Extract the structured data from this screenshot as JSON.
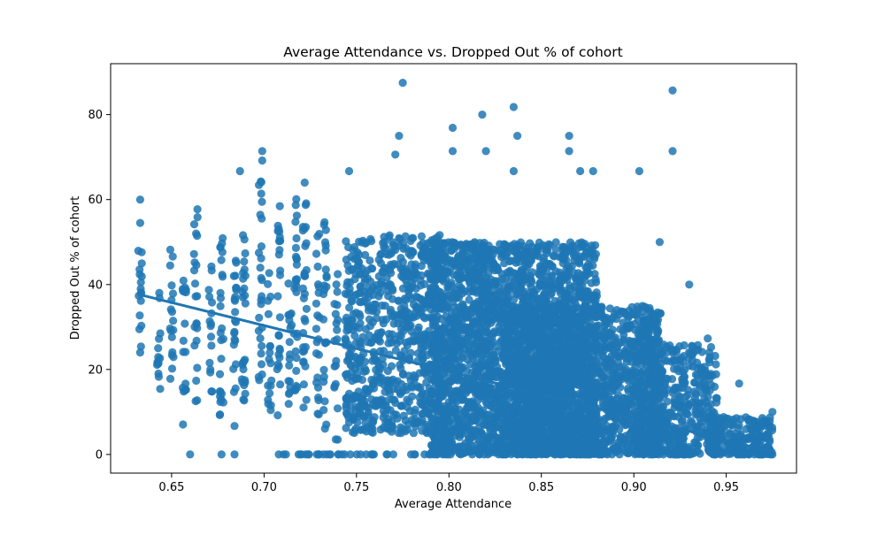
{
  "chart_data": {
    "type": "scatter",
    "title": "Average Attendance vs. Dropped Out % of cohort",
    "xlabel": "Average Attendance",
    "ylabel": "Dropped Out % of cohort",
    "xlim": [
      0.617,
      0.988
    ],
    "ylim": [
      -4.4,
      92.0
    ],
    "xticks": [
      0.65,
      0.7,
      0.75,
      0.8,
      0.85,
      0.9,
      0.95
    ],
    "xtick_labels": [
      "0.65",
      "0.70",
      "0.75",
      "0.80",
      "0.85",
      "0.90",
      "0.95"
    ],
    "yticks": [
      0,
      20,
      40,
      60,
      80
    ],
    "ytick_labels": [
      "0",
      "20",
      "40",
      "60",
      "80"
    ],
    "grid": false,
    "legend": "none",
    "color": "#1f77b4",
    "regression_line": {
      "x": [
        0.633,
        0.975
      ],
      "y": [
        37.6,
        0.6
      ]
    },
    "notable_points": [
      {
        "x": 0.633,
        "y": 60.0
      },
      {
        "x": 0.633,
        "y": 54.5
      },
      {
        "x": 0.633,
        "y": 24.0
      },
      {
        "x": 0.66,
        "y": 0.0
      },
      {
        "x": 0.677,
        "y": 0.0
      },
      {
        "x": 0.684,
        "y": 0.0
      },
      {
        "x": 0.684,
        "y": 6.7
      },
      {
        "x": 0.687,
        "y": 66.7
      },
      {
        "x": 0.699,
        "y": 71.4
      },
      {
        "x": 0.699,
        "y": 69.2
      },
      {
        "x": 0.722,
        "y": 64.0
      },
      {
        "x": 0.746,
        "y": 66.7
      },
      {
        "x": 0.775,
        "y": 87.5
      },
      {
        "x": 0.773,
        "y": 75.0
      },
      {
        "x": 0.771,
        "y": 70.6
      },
      {
        "x": 0.802,
        "y": 76.9
      },
      {
        "x": 0.802,
        "y": 71.4
      },
      {
        "x": 0.818,
        "y": 80.0
      },
      {
        "x": 0.82,
        "y": 71.4
      },
      {
        "x": 0.835,
        "y": 81.8
      },
      {
        "x": 0.837,
        "y": 75.0
      },
      {
        "x": 0.835,
        "y": 66.7
      },
      {
        "x": 0.865,
        "y": 75.0
      },
      {
        "x": 0.865,
        "y": 71.4
      },
      {
        "x": 0.871,
        "y": 66.7
      },
      {
        "x": 0.878,
        "y": 66.7
      },
      {
        "x": 0.903,
        "y": 66.7
      },
      {
        "x": 0.921,
        "y": 85.7
      },
      {
        "x": 0.921,
        "y": 71.4
      },
      {
        "x": 0.914,
        "y": 50.0
      },
      {
        "x": 0.93,
        "y": 40.0
      },
      {
        "x": 0.94,
        "y": 27.3
      },
      {
        "x": 0.957,
        "y": 16.7
      },
      {
        "x": 0.975,
        "y": 10.0
      },
      {
        "x": 0.975,
        "y": 0.0
      }
    ],
    "columns": [
      {
        "x": 0.633,
        "ymin": 24,
        "ymax": 50,
        "n": 16
      },
      {
        "x": 0.643,
        "ymin": 14,
        "ymax": 40,
        "n": 14
      },
      {
        "x": 0.65,
        "ymin": 15,
        "ymax": 51,
        "n": 18
      },
      {
        "x": 0.657,
        "ymin": 7,
        "ymax": 42,
        "n": 18
      },
      {
        "x": 0.663,
        "ymin": 11,
        "ymax": 58,
        "n": 22
      },
      {
        "x": 0.671,
        "ymin": 14,
        "ymax": 46,
        "n": 16
      },
      {
        "x": 0.677,
        "ymin": 9,
        "ymax": 52,
        "n": 26
      },
      {
        "x": 0.684,
        "ymin": 12,
        "ymax": 46,
        "n": 22
      },
      {
        "x": 0.689,
        "ymin": 12,
        "ymax": 55,
        "n": 26
      },
      {
        "x": 0.698,
        "ymin": 16,
        "ymax": 66,
        "n": 26
      },
      {
        "x": 0.703,
        "ymin": 10,
        "ymax": 46,
        "n": 18
      },
      {
        "x": 0.708,
        "ymin": 8,
        "ymax": 60,
        "n": 26
      },
      {
        "x": 0.714,
        "ymin": 10,
        "ymax": 46,
        "n": 18
      },
      {
        "x": 0.717,
        "ymin": 14,
        "ymax": 61,
        "n": 26
      },
      {
        "x": 0.722,
        "ymin": 9,
        "ymax": 62,
        "n": 30
      },
      {
        "x": 0.729,
        "ymin": 9,
        "ymax": 52,
        "n": 22
      },
      {
        "x": 0.733,
        "ymin": 6,
        "ymax": 56,
        "n": 24
      },
      {
        "x": 0.739,
        "ymin": 3,
        "ymax": 46,
        "n": 20
      }
    ],
    "dense_regions": [
      {
        "xmin": 0.744,
        "xmax": 0.795,
        "ymin": 5,
        "ymax": 52,
        "n": 700
      },
      {
        "xmin": 0.79,
        "xmax": 0.88,
        "ymin": 0,
        "ymax": 50,
        "n": 2600
      },
      {
        "xmin": 0.83,
        "xmax": 0.915,
        "ymin": 0,
        "ymax": 35,
        "n": 1500
      },
      {
        "xmin": 0.9,
        "xmax": 0.945,
        "ymin": 0,
        "ymax": 26,
        "n": 450
      },
      {
        "xmin": 0.94,
        "xmax": 0.975,
        "ymin": 0,
        "ymax": 9,
        "n": 200
      }
    ],
    "zero_baseline": {
      "xmin": 0.705,
      "xmax": 0.975,
      "y": 0,
      "n": 120
    }
  }
}
